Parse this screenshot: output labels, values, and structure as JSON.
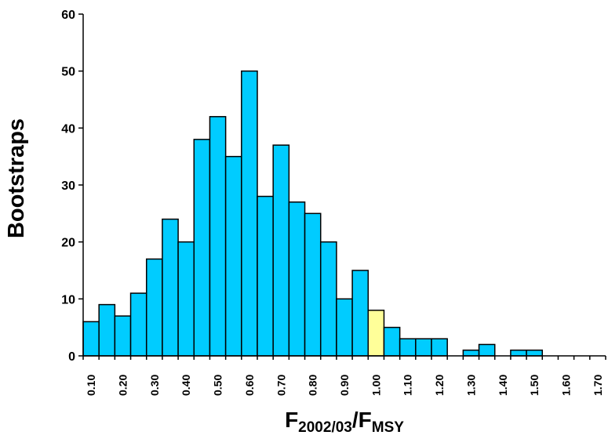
{
  "chart_data": {
    "type": "bar",
    "title": "",
    "ylabel": "Bootstraps",
    "xlabel": {
      "main1": "F",
      "sub1": "2002/03",
      "sep": "/F",
      "sub2": "MSY"
    },
    "ylim": [
      0,
      60
    ],
    "yticks": [
      "0",
      "10",
      "20",
      "30",
      "40",
      "50",
      "60"
    ],
    "x_start": 0.075,
    "bin_width": 0.05,
    "xlim": [
      0.075,
      1.725
    ],
    "xticks": [
      "0.10",
      "0.20",
      "0.30",
      "0.40",
      "0.50",
      "0.60",
      "0.70",
      "0.80",
      "0.90",
      "1.00",
      "1.10",
      "1.20",
      "1.30",
      "1.40",
      "1.50",
      "1.60",
      "1.70"
    ],
    "values": [
      6,
      9,
      7,
      11,
      17,
      24,
      20,
      38,
      42,
      35,
      50,
      28,
      37,
      27,
      25,
      20,
      10,
      15,
      8,
      5,
      3,
      3,
      3,
      0,
      1,
      2,
      0,
      1,
      1,
      0,
      0,
      0,
      0
    ],
    "highlight_index": 18,
    "bar_color": "#00CCFF",
    "highlight_color": "#FFFF99",
    "grid": false
  }
}
